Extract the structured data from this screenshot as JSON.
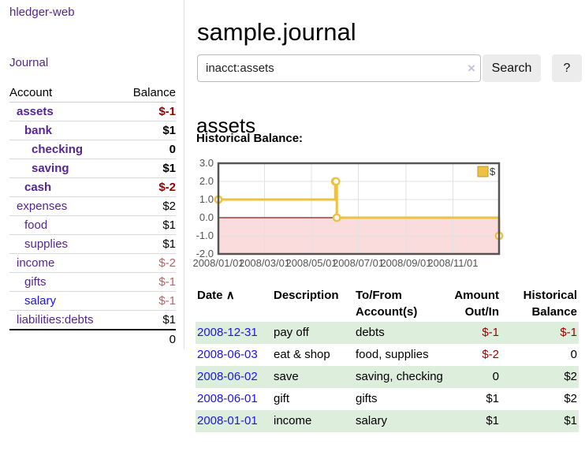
{
  "sidebar": {
    "brand": "hledger-web",
    "journal_label": "Journal",
    "accounts_table": {
      "header_account": "Account",
      "header_balance": "Balance",
      "rows": [
        {
          "name": "assets",
          "balance": "$-1",
          "indent": 1,
          "bold": true,
          "balance_tone": "neg-strong",
          "link_tone": "purple"
        },
        {
          "name": "bank",
          "balance": "$1",
          "indent": 2,
          "bold": true,
          "balance_tone": "normal",
          "link_tone": "purple"
        },
        {
          "name": "checking",
          "balance": "0",
          "indent": 3,
          "bold": true,
          "balance_tone": "normal",
          "link_tone": "purple"
        },
        {
          "name": "saving",
          "balance": "$1",
          "indent": 3,
          "bold": true,
          "balance_tone": "normal",
          "link_tone": "purple"
        },
        {
          "name": "cash",
          "balance": "$-2",
          "indent": 2,
          "bold": true,
          "balance_tone": "neg-strong",
          "link_tone": "purple"
        },
        {
          "name": "expenses",
          "balance": "$2",
          "indent": 1,
          "bold": false,
          "balance_tone": "normal",
          "link_tone": "purple"
        },
        {
          "name": "food",
          "balance": "$1",
          "indent": 2,
          "bold": false,
          "balance_tone": "normal",
          "link_tone": "purple"
        },
        {
          "name": "supplies",
          "balance": "$1",
          "indent": 2,
          "bold": false,
          "balance_tone": "normal",
          "link_tone": "purple"
        },
        {
          "name": "income",
          "balance": "$-2",
          "indent": 1,
          "bold": false,
          "balance_tone": "neg-soft",
          "link_tone": "purple"
        },
        {
          "name": "gifts",
          "balance": "$-1",
          "indent": 2,
          "bold": false,
          "balance_tone": "neg-soft",
          "link_tone": "purple"
        },
        {
          "name": "salary",
          "balance": "$-1",
          "indent": 2,
          "bold": false,
          "balance_tone": "neg-soft",
          "link_tone": "blue"
        },
        {
          "name": "liabilities:debts",
          "balance": "$1",
          "indent": 1,
          "bold": false,
          "balance_tone": "normal",
          "link_tone": "purple"
        }
      ],
      "total": "0"
    }
  },
  "main": {
    "title": "sample.journal",
    "search": {
      "value": "inacct:assets",
      "clear_icon": "×",
      "search_button": "Search",
      "help_button": "?"
    },
    "account_heading": "assets",
    "chart_heading": "Historical Balance:",
    "register_table": {
      "headers": {
        "date": "Date",
        "sort_icon": "∧",
        "description": "Description",
        "accounts": "To/From Account(s)",
        "amount": "Amount Out/In",
        "balance": "Historical Balance"
      },
      "rows": [
        {
          "date": "2008-12-31",
          "description": "pay off",
          "accounts": "debts",
          "amount": "$-1",
          "amount_neg": true,
          "balance": "$-1",
          "balance_neg": true,
          "stripe": true
        },
        {
          "date": "2008-06-03",
          "description": "eat & shop",
          "accounts": "food, supplies",
          "amount": "$-2",
          "amount_neg": true,
          "balance": "0",
          "balance_neg": false,
          "stripe": false
        },
        {
          "date": "2008-06-02",
          "description": "save",
          "accounts": "saving, checking",
          "amount": "0",
          "amount_neg": false,
          "balance": "$2",
          "balance_neg": false,
          "stripe": true
        },
        {
          "date": "2008-06-01",
          "description": "gift",
          "accounts": "gifts",
          "amount": "$1",
          "amount_neg": false,
          "balance": "$2",
          "balance_neg": false,
          "stripe": false
        },
        {
          "date": "2008-01-01",
          "description": "income",
          "accounts": "salary",
          "amount": "$1",
          "amount_neg": false,
          "balance": "$1",
          "balance_neg": false,
          "stripe": true
        }
      ]
    }
  },
  "chart_data": {
    "type": "line",
    "title": "Historical Balance:",
    "step": true,
    "series": [
      {
        "name": "$",
        "color": "#edc240",
        "points": [
          {
            "date": "2008-01-01",
            "value": 1
          },
          {
            "date": "2008-06-01",
            "value": 2
          },
          {
            "date": "2008-06-02",
            "value": 2
          },
          {
            "date": "2008-06-03",
            "value": 0
          },
          {
            "date": "2008-12-31",
            "value": -1
          }
        ]
      }
    ],
    "x_ticks": [
      {
        "date": "2008-01-01",
        "label": "2008/01/01"
      },
      {
        "date": "2008-03-01",
        "label": "2008/03/01"
      },
      {
        "date": "2008-05-01",
        "label": "2008/05/01"
      },
      {
        "date": "2008-07-01",
        "label": "2008/07/01"
      },
      {
        "date": "2008-09-01",
        "label": "2008/09/01"
      },
      {
        "date": "2008-11-01",
        "label": "2008/11/01"
      }
    ],
    "y_ticks": [
      {
        "value": 3,
        "label": "3.0"
      },
      {
        "value": 2,
        "label": "2.0"
      },
      {
        "value": 1,
        "label": "1.0"
      },
      {
        "value": 0,
        "label": "0.0"
      },
      {
        "value": -1,
        "label": "-1.0"
      },
      {
        "value": -2,
        "label": "-2.0"
      }
    ],
    "x_range": [
      "2008-01-01",
      "2008-12-31"
    ],
    "ylim": [
      -2,
      3
    ],
    "grid": true,
    "legend": {
      "label": "$",
      "position": "top-right"
    },
    "colors": {
      "line": "#edc240",
      "marker_fill": "#ffffff",
      "negative_region": "#fbdcdc",
      "zero_line": "#8b1a1a",
      "gridline": "#e2e2e2",
      "plot_border": "#545454",
      "tick_text": "#545454"
    }
  }
}
